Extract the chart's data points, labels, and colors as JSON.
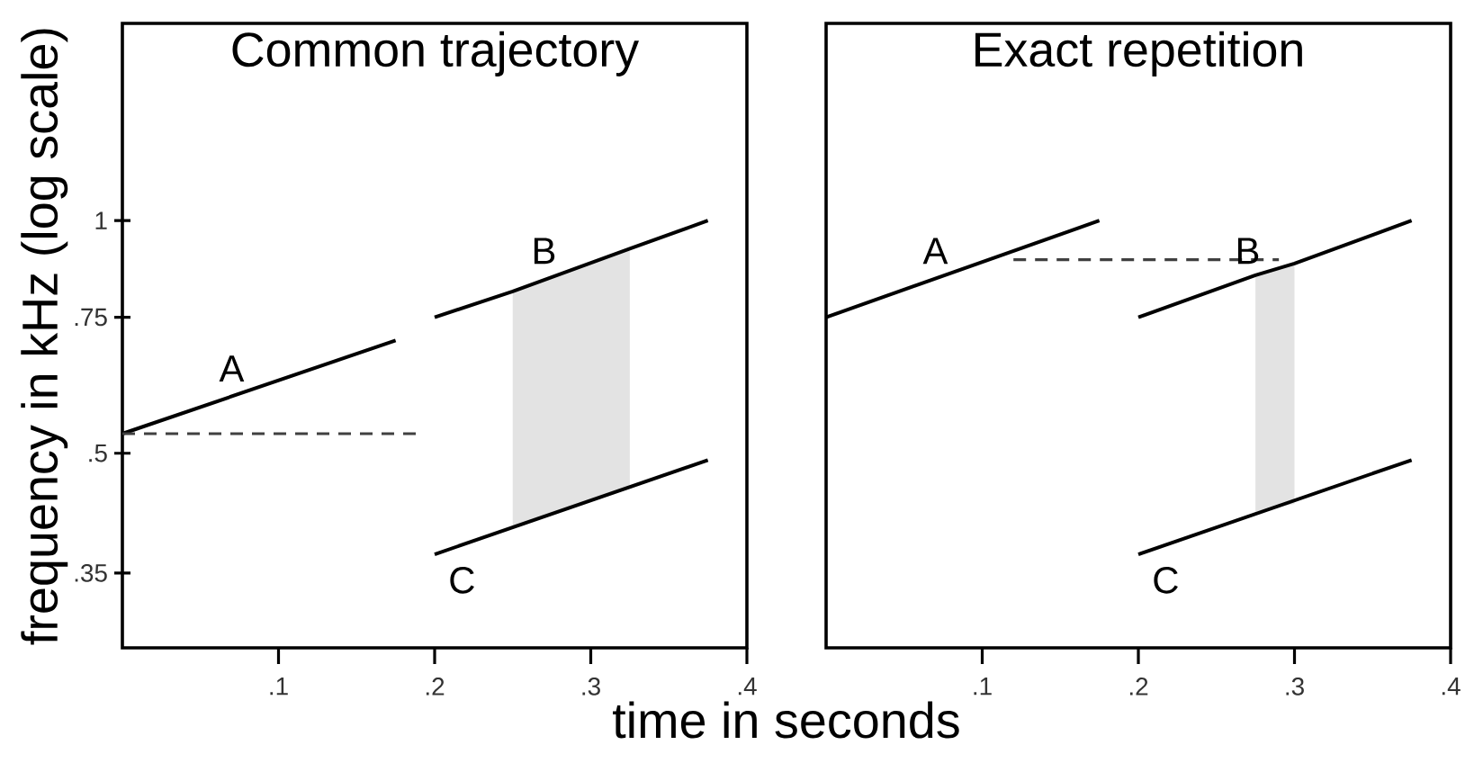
{
  "chart_data": [
    {
      "type": "line",
      "title": "Common trajectory",
      "xlabel": "time in seconds",
      "ylabel": "frequency in kHz (log scale)",
      "log": "y",
      "xlim": [
        0,
        0.4
      ],
      "ylim": [
        0.28,
        1.8
      ],
      "xticks": [
        {
          "value": 0.1,
          "label": ".1"
        },
        {
          "value": 0.2,
          "label": ".2"
        },
        {
          "value": 0.3,
          "label": ".3"
        },
        {
          "value": 0.4,
          "label": ".4"
        }
      ],
      "yticks": [
        {
          "value": 0.35,
          "label": ".35"
        },
        {
          "value": 0.5,
          "label": ".5"
        },
        {
          "value": 0.75,
          "label": ".75"
        },
        1
      ],
      "line_style": "solid",
      "series": [
        {
          "name": "A",
          "x": [
            0,
            0.175
          ],
          "values": [
            0.53,
            0.7
          ],
          "color": "#000000"
        },
        {
          "x": [
            0,
            0.19
          ],
          "values": [
            0.53,
            0.53
          ],
          "color": "#404040",
          "line_style": "dashed"
        },
        {
          "name": "B",
          "x": [
            0.2,
            0.25,
            0.325,
            0.375
          ],
          "values": [
            0.75,
            0.81,
            0.92,
            1
          ],
          "lower": [
            null,
            0.4,
            0.45,
            null
          ],
          "upper": [
            null,
            0.81,
            0.92,
            null
          ],
          "color": "#000000"
        },
        {
          "name": "C",
          "x": [
            0.2,
            0.375
          ],
          "values": [
            0.37,
            0.49
          ],
          "color": "#000000"
        }
      ]
    },
    {
      "type": "line",
      "title": "Exact repetition",
      "log": "y",
      "xlim": [
        0,
        0.4
      ],
      "ylim": [
        0.28,
        1.8
      ],
      "tick_labels": "x",
      "xticks": [
        {
          "value": 0.1,
          "label": ".1"
        },
        {
          "value": 0.2,
          "label": ".2"
        },
        {
          "value": 0.3,
          "label": ".3"
        },
        {
          "value": 0.4,
          "label": ".4"
        }
      ],
      "line_style": "solid",
      "series": [
        {
          "name": "A",
          "x": [
            0,
            0.175
          ],
          "values": [
            0.75,
            1
          ],
          "color": "#000000"
        },
        {
          "x": [
            0.12,
            0.29
          ],
          "values": [
            0.89,
            0.89
          ],
          "color": "#404040",
          "line_style": "dashed"
        },
        {
          "name": "B",
          "x": [
            0.2,
            0.275,
            0.3,
            0.375
          ],
          "values": [
            0.75,
            0.85,
            0.88,
            1
          ],
          "lower": [
            null,
            0.42,
            0.43,
            null
          ],
          "upper": [
            null,
            0.85,
            0.88,
            null
          ],
          "color": "#000000"
        },
        {
          "name": "C",
          "x": [
            0.2,
            0.375
          ],
          "values": [
            0.37,
            0.49
          ],
          "color": "#000000"
        }
      ]
    }
  ]
}
